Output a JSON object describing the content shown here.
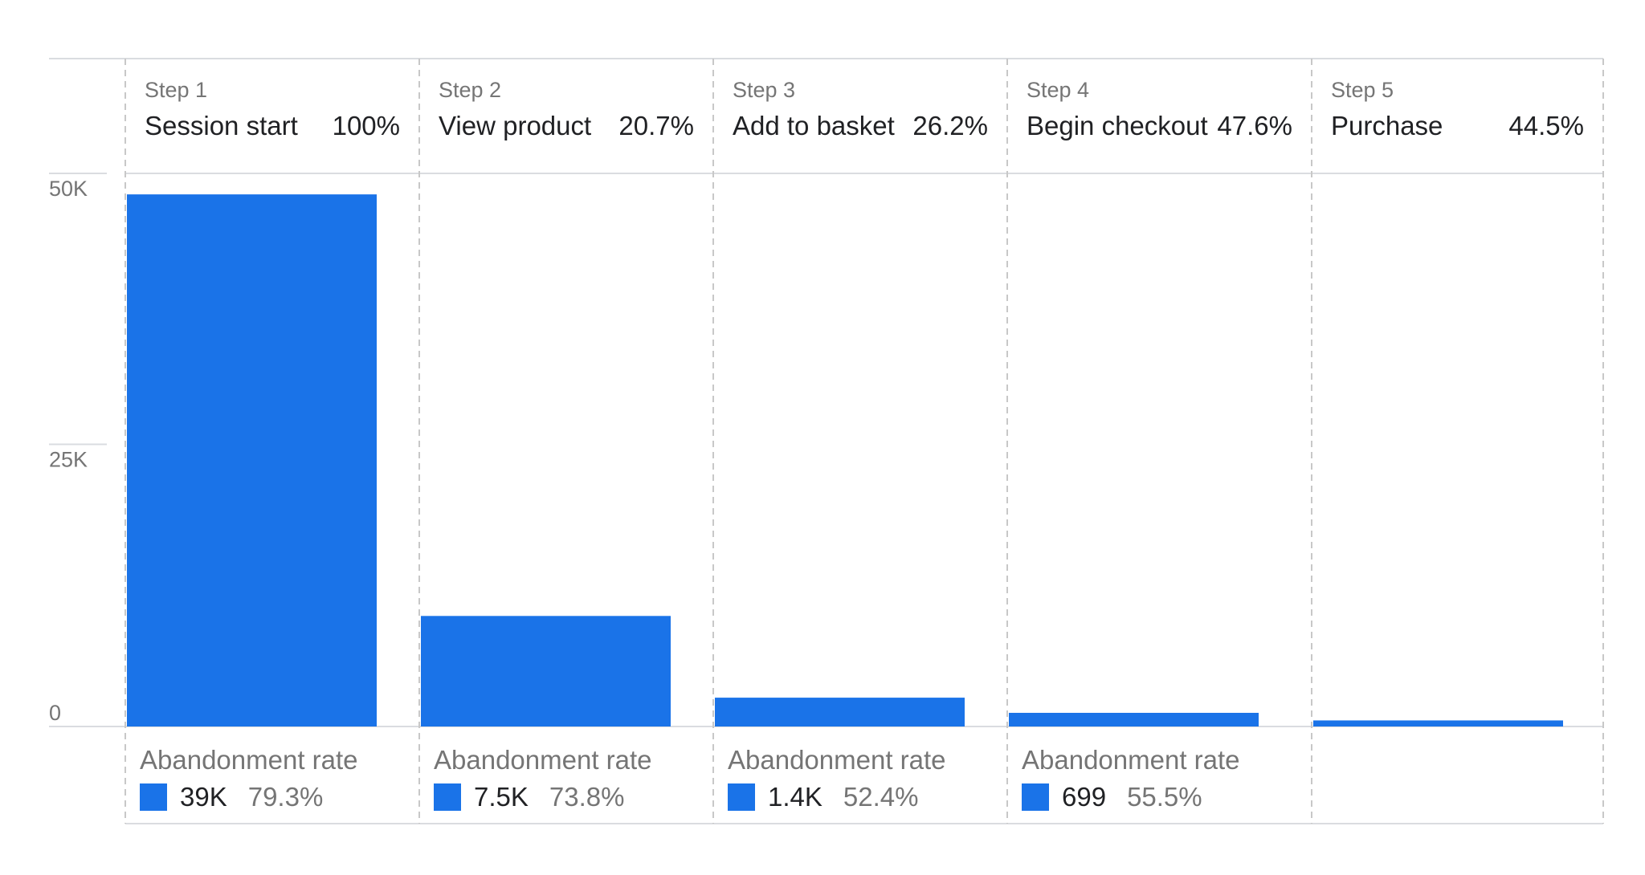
{
  "chart_data": {
    "type": "bar",
    "categories": [
      "Session start",
      "View product",
      "Add to basket",
      "Begin checkout",
      "Purchase"
    ],
    "steps": [
      {
        "step": "Step 1",
        "name": "Session start",
        "completion": "100%"
      },
      {
        "step": "Step 2",
        "name": "View product",
        "completion": "20.7%"
      },
      {
        "step": "Step 3",
        "name": "Add to basket",
        "completion": "26.2%"
      },
      {
        "step": "Step 4",
        "name": "Begin checkout",
        "completion": "47.6%"
      },
      {
        "step": "Step 5",
        "name": "Purchase",
        "completion": "44.5%"
      }
    ],
    "values": [
      49100,
      10200,
      2660,
      1260,
      560
    ],
    "ylim": [
      0,
      50000
    ],
    "yticks": [
      {
        "value": 50000,
        "label": "50K"
      },
      {
        "value": 25000,
        "label": "25K"
      },
      {
        "value": 0,
        "label": "0"
      }
    ],
    "abandonment_title": "Abandonment rate",
    "abandonment": [
      {
        "count": "39K",
        "rate": "79.3%"
      },
      {
        "count": "7.5K",
        "rate": "73.8%"
      },
      {
        "count": "1.4K",
        "rate": "52.4%"
      },
      {
        "count": "699",
        "rate": "55.5%"
      }
    ],
    "grid": true,
    "colors": {
      "bar": "#1a73e8",
      "grid": "#dadce0",
      "divider": "#c8c8c8"
    }
  }
}
